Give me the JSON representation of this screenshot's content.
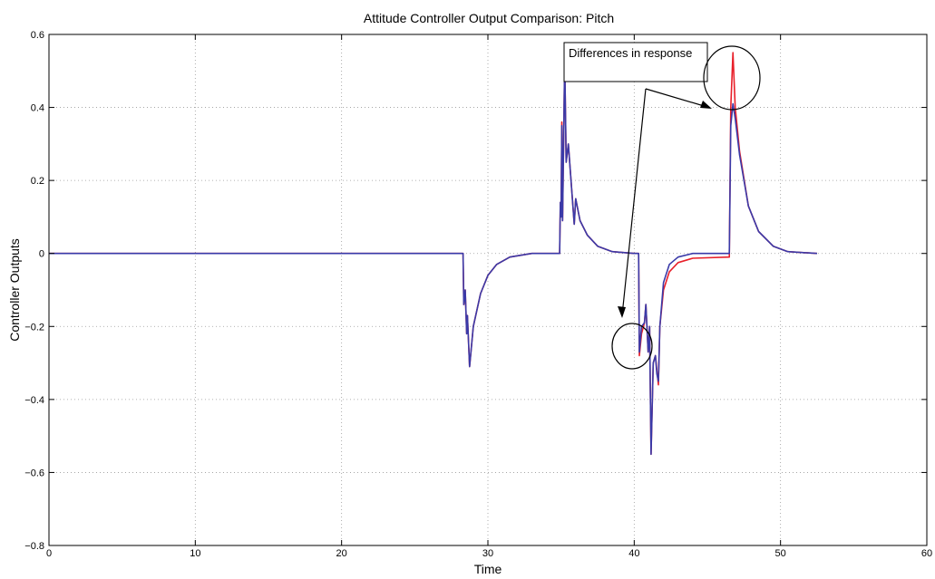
{
  "chart_data": {
    "type": "line",
    "title": "Attitude Controller Output Comparison: Pitch",
    "xlabel": "Time",
    "ylabel": "Controller Outputs",
    "xlim": [
      0,
      60
    ],
    "ylim": [
      -0.8,
      0.6
    ],
    "xticks": [
      0,
      10,
      20,
      30,
      40,
      50,
      60
    ],
    "xtick_labels": [
      "0",
      "10",
      "20",
      "30",
      "40",
      "50",
      "60"
    ],
    "yticks": [
      -0.8,
      -0.6,
      -0.4,
      -0.2,
      0,
      0.2,
      0.4,
      0.6
    ],
    "ytick_labels": [
      "−0.8",
      "−0.6",
      "−0.4",
      "−0.2",
      "0",
      "0.2",
      "0.4",
      "0.6"
    ],
    "grid": true,
    "annotation": "Differences in response",
    "series": [
      {
        "color": "#e8202a",
        "points": [
          [
            0,
            0
          ],
          [
            28.3,
            0
          ],
          [
            28.35,
            -0.14
          ],
          [
            28.45,
            -0.1
          ],
          [
            28.55,
            -0.22
          ],
          [
            28.6,
            -0.17
          ],
          [
            28.75,
            -0.31
          ],
          [
            29.0,
            -0.2
          ],
          [
            29.5,
            -0.11
          ],
          [
            30.0,
            -0.06
          ],
          [
            30.6,
            -0.03
          ],
          [
            31.5,
            -0.01
          ],
          [
            33.0,
            0
          ],
          [
            34.9,
            0
          ],
          [
            34.95,
            0.14
          ],
          [
            35.0,
            0.1
          ],
          [
            35.05,
            0.36
          ],
          [
            35.1,
            0.09
          ],
          [
            35.25,
            0.53
          ],
          [
            35.35,
            0.25
          ],
          [
            35.5,
            0.3
          ],
          [
            35.9,
            0.08
          ],
          [
            36.0,
            0.15
          ],
          [
            36.3,
            0.09
          ],
          [
            36.8,
            0.05
          ],
          [
            37.5,
            0.02
          ],
          [
            38.5,
            0.005
          ],
          [
            40.0,
            0
          ],
          [
            40.3,
            0
          ],
          [
            40.35,
            -0.28
          ],
          [
            40.5,
            -0.22
          ],
          [
            40.7,
            -0.19
          ],
          [
            40.8,
            -0.14
          ],
          [
            40.95,
            -0.27
          ],
          [
            41.05,
            -0.2
          ],
          [
            41.15,
            -0.55
          ],
          [
            41.3,
            -0.3
          ],
          [
            41.45,
            -0.28
          ],
          [
            41.55,
            -0.32
          ],
          [
            41.65,
            -0.36
          ],
          [
            41.75,
            -0.2
          ],
          [
            42.0,
            -0.1
          ],
          [
            42.4,
            -0.05
          ],
          [
            43.0,
            -0.025
          ],
          [
            44.0,
            -0.013
          ],
          [
            46.5,
            -0.01
          ],
          [
            46.6,
            0.4
          ],
          [
            46.75,
            0.55
          ],
          [
            46.9,
            0.4
          ],
          [
            47.2,
            0.28
          ],
          [
            47.8,
            0.13
          ],
          [
            48.5,
            0.06
          ],
          [
            49.5,
            0.02
          ],
          [
            50.5,
            0.005
          ],
          [
            52.5,
            0
          ]
        ]
      },
      {
        "color": "#3a3aa8",
        "points": [
          [
            0,
            0
          ],
          [
            28.3,
            0
          ],
          [
            28.35,
            -0.14
          ],
          [
            28.45,
            -0.1
          ],
          [
            28.55,
            -0.22
          ],
          [
            28.6,
            -0.17
          ],
          [
            28.75,
            -0.31
          ],
          [
            29.0,
            -0.2
          ],
          [
            29.5,
            -0.11
          ],
          [
            30.0,
            -0.06
          ],
          [
            30.6,
            -0.03
          ],
          [
            31.5,
            -0.01
          ],
          [
            33.0,
            0
          ],
          [
            34.9,
            0
          ],
          [
            34.95,
            0.14
          ],
          [
            35.0,
            0.1
          ],
          [
            35.05,
            0.35
          ],
          [
            35.1,
            0.09
          ],
          [
            35.25,
            0.53
          ],
          [
            35.35,
            0.25
          ],
          [
            35.5,
            0.3
          ],
          [
            35.9,
            0.08
          ],
          [
            36.0,
            0.15
          ],
          [
            36.3,
            0.09
          ],
          [
            36.8,
            0.05
          ],
          [
            37.5,
            0.02
          ],
          [
            38.5,
            0.005
          ],
          [
            40.0,
            0
          ],
          [
            40.3,
            0
          ],
          [
            40.35,
            -0.27
          ],
          [
            40.5,
            -0.2
          ],
          [
            40.7,
            -0.19
          ],
          [
            40.8,
            -0.14
          ],
          [
            40.95,
            -0.27
          ],
          [
            41.05,
            -0.2
          ],
          [
            41.15,
            -0.55
          ],
          [
            41.3,
            -0.3
          ],
          [
            41.45,
            -0.28
          ],
          [
            41.55,
            -0.33
          ],
          [
            41.65,
            -0.35
          ],
          [
            41.75,
            -0.2
          ],
          [
            42.0,
            -0.08
          ],
          [
            42.4,
            -0.03
          ],
          [
            43.0,
            -0.01
          ],
          [
            44.0,
            0
          ],
          [
            46.5,
            0
          ],
          [
            46.6,
            0.35
          ],
          [
            46.75,
            0.41
          ],
          [
            46.9,
            0.37
          ],
          [
            47.2,
            0.27
          ],
          [
            47.8,
            0.13
          ],
          [
            48.5,
            0.06
          ],
          [
            49.5,
            0.02
          ],
          [
            50.5,
            0.005
          ],
          [
            52.5,
            0
          ]
        ]
      }
    ]
  }
}
